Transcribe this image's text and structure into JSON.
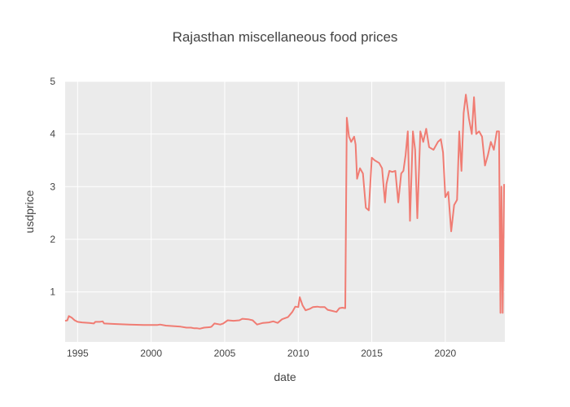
{
  "chart_data": {
    "type": "line",
    "title": "Rajasthan miscellaneous food prices",
    "xlabel": "date",
    "ylabel": "usdprice",
    "xlim": [
      1994.15,
      2024.05
    ],
    "ylim": [
      0.05,
      5.0
    ],
    "x_ticks": [
      1995,
      2000,
      2005,
      2010,
      2015,
      2020
    ],
    "x_tick_labels": [
      "1995",
      "2000",
      "2005",
      "2010",
      "2015",
      "2020"
    ],
    "y_ticks": [
      1,
      2,
      3,
      4,
      5
    ],
    "y_tick_labels": [
      "1",
      "2",
      "3",
      "4",
      "5"
    ],
    "grid": true,
    "legend": "none",
    "colors": {
      "line": "#f07c73",
      "plot_bg": "#ebebeb",
      "grid": "#ffffff"
    },
    "series": [
      {
        "x": [
          1994.15,
          1994.3,
          1994.4,
          1994.6,
          1994.8,
          1995.0,
          1995.3,
          1995.8,
          1996.1,
          1996.2,
          1996.5,
          1996.7,
          1996.8,
          1997.5,
          1998.5,
          1999.5,
          2000.2,
          2000.4,
          2000.6,
          2001.0,
          2001.5,
          2002.0,
          2002.4,
          2002.7,
          2002.9,
          2003.1,
          2003.3,
          2003.6,
          2004.0,
          2004.1,
          2004.3,
          2004.7,
          2004.9,
          2005.2,
          2005.6,
          2006.0,
          2006.2,
          2006.6,
          2006.9,
          2007.2,
          2007.6,
          2008.0,
          2008.3,
          2008.6,
          2008.9,
          2009.3,
          2009.6,
          2009.8,
          2010.0,
          2010.1,
          2010.3,
          2010.5,
          2010.8,
          2011.0,
          2011.3,
          2011.5,
          2011.8,
          2012.0,
          2012.3,
          2012.6,
          2012.8,
          2013.0,
          2013.2,
          2013.3,
          2013.45,
          2013.6,
          2013.8,
          2013.9,
          2014.0,
          2014.2,
          2014.4,
          2014.6,
          2014.8,
          2015.0,
          2015.2,
          2015.5,
          2015.7,
          2015.9,
          2016.0,
          2016.2,
          2016.4,
          2016.6,
          2016.8,
          2017.0,
          2017.15,
          2017.3,
          2017.45,
          2017.6,
          2017.8,
          2017.95,
          2018.1,
          2018.3,
          2018.5,
          2018.7,
          2018.9,
          2019.2,
          2019.5,
          2019.7,
          2019.85,
          2020.0,
          2020.2,
          2020.4,
          2020.6,
          2020.8,
          2020.95,
          2021.1,
          2021.25,
          2021.4,
          2021.6,
          2021.8,
          2021.95,
          2022.1,
          2022.3,
          2022.5,
          2022.7,
          2022.9,
          2023.1,
          2023.3,
          2023.5,
          2023.65,
          2023.75,
          2023.82,
          2023.9,
          2024.0
        ],
        "y": [
          0.45,
          0.46,
          0.54,
          0.51,
          0.46,
          0.43,
          0.42,
          0.41,
          0.4,
          0.43,
          0.43,
          0.44,
          0.4,
          0.39,
          0.38,
          0.37,
          0.37,
          0.37,
          0.38,
          0.36,
          0.35,
          0.34,
          0.32,
          0.32,
          0.31,
          0.31,
          0.3,
          0.32,
          0.33,
          0.34,
          0.4,
          0.38,
          0.4,
          0.46,
          0.45,
          0.46,
          0.49,
          0.48,
          0.46,
          0.38,
          0.41,
          0.42,
          0.44,
          0.41,
          0.48,
          0.52,
          0.62,
          0.72,
          0.71,
          0.9,
          0.74,
          0.65,
          0.68,
          0.71,
          0.72,
          0.71,
          0.71,
          0.66,
          0.64,
          0.62,
          0.69,
          0.7,
          0.69,
          4.31,
          3.95,
          3.85,
          3.95,
          3.8,
          3.15,
          3.35,
          3.25,
          2.6,
          2.55,
          3.55,
          3.5,
          3.45,
          3.35,
          2.7,
          3.05,
          3.3,
          3.28,
          3.3,
          2.7,
          3.25,
          3.3,
          3.6,
          4.05,
          2.35,
          4.05,
          3.7,
          2.4,
          4.05,
          3.85,
          4.1,
          3.75,
          3.7,
          3.85,
          3.9,
          3.65,
          2.8,
          2.9,
          2.15,
          2.65,
          2.75,
          4.05,
          3.3,
          4.4,
          4.75,
          4.3,
          4.0,
          4.7,
          4.0,
          4.05,
          3.95,
          3.4,
          3.6,
          3.85,
          3.7,
          4.05,
          4.05,
          0.6,
          3.0,
          0.6,
          3.05
        ]
      }
    ]
  }
}
